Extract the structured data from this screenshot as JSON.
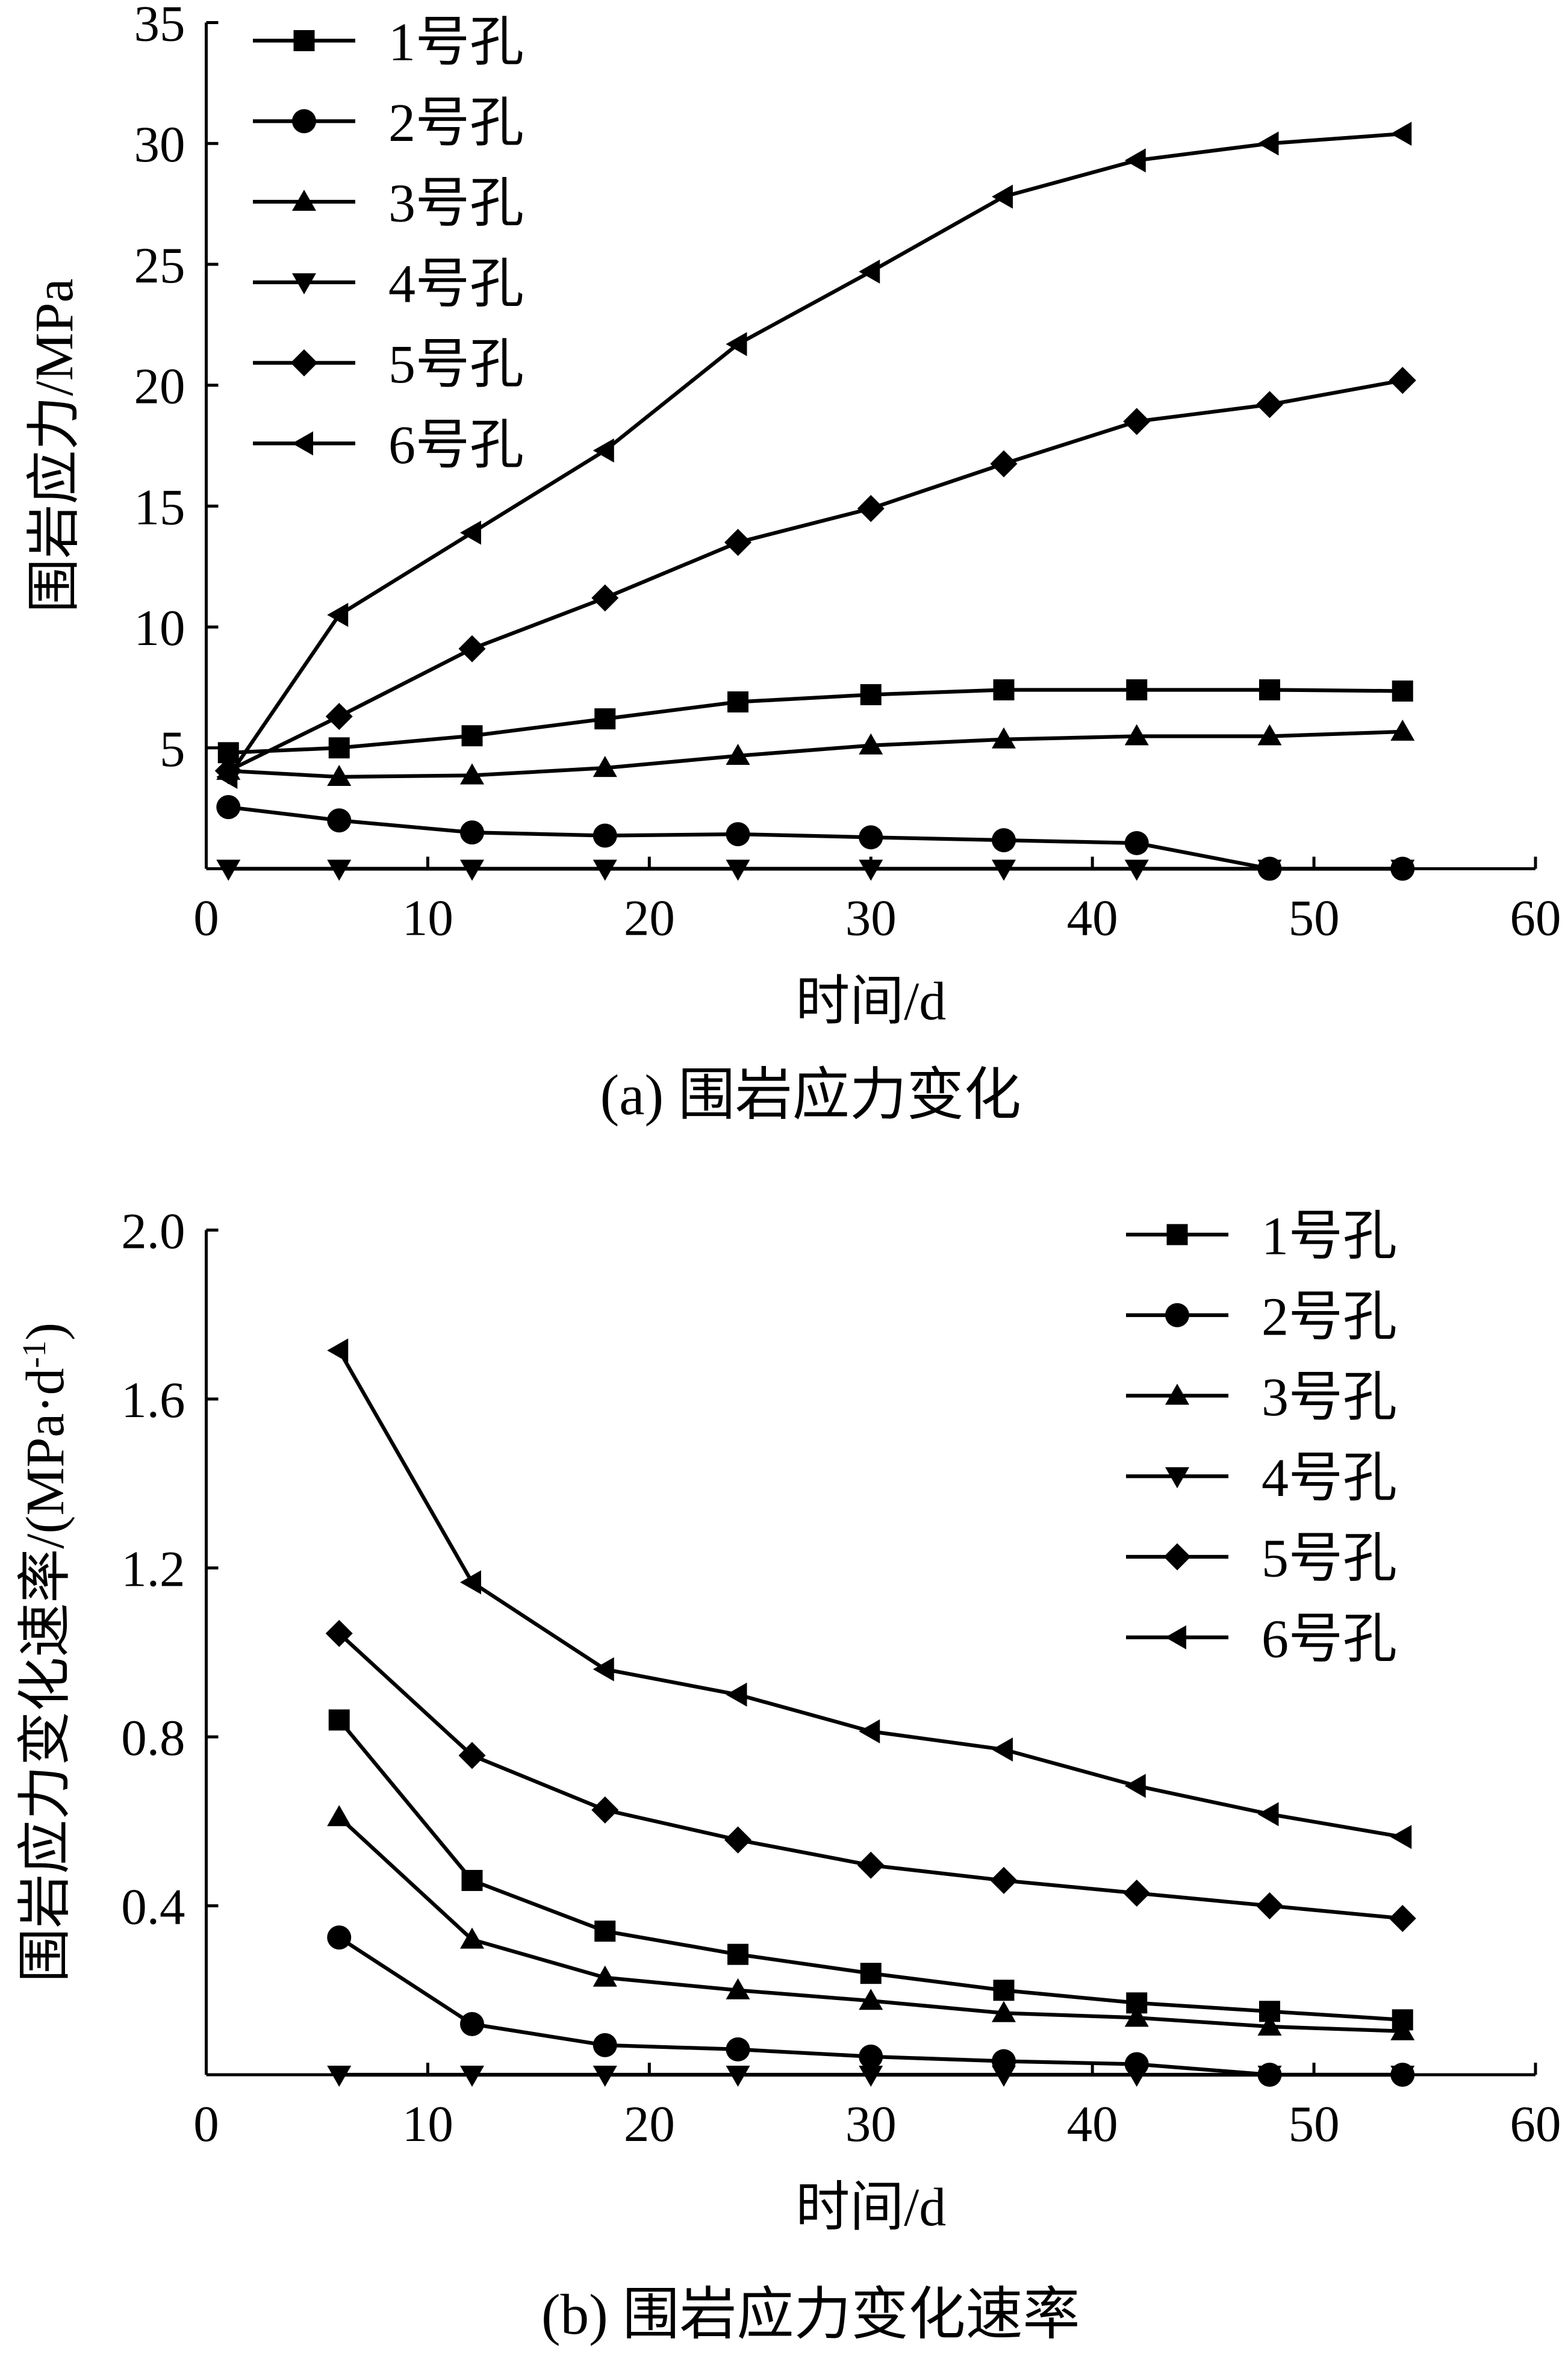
{
  "chart_data": [
    {
      "type": "line",
      "title": "",
      "caption": "(a)  围岩应力变化",
      "xlabel": "时间/d",
      "ylabel": "围岩应力/MPa",
      "xlim": [
        0,
        60
      ],
      "ylim": [
        0,
        35
      ],
      "xticks": [
        0,
        10,
        20,
        30,
        40,
        50,
        60
      ],
      "yticks": [
        5,
        10,
        15,
        20,
        25,
        30,
        35
      ],
      "grid": false,
      "legend_position": "top-left",
      "x": [
        1,
        6,
        12,
        18,
        24,
        30,
        36,
        42,
        48,
        54
      ],
      "series": [
        {
          "name": "1号孔",
          "marker": "square",
          "values": [
            4.8,
            5.0,
            5.5,
            6.2,
            6.9,
            7.2,
            7.4,
            7.4,
            7.4,
            7.35
          ]
        },
        {
          "name": "2号孔",
          "marker": "circle",
          "values": [
            2.55,
            2.0,
            1.5,
            1.37,
            1.43,
            1.3,
            1.18,
            1.06,
            0,
            0
          ]
        },
        {
          "name": "3号孔",
          "marker": "triangle-up",
          "values": [
            4.05,
            3.8,
            3.86,
            4.17,
            4.67,
            5.1,
            5.35,
            5.48,
            5.48,
            5.67
          ]
        },
        {
          "name": "4号孔",
          "marker": "triangle-down",
          "values": [
            0,
            0,
            0,
            0,
            0,
            0,
            0,
            0,
            0,
            0
          ]
        },
        {
          "name": "5号孔",
          "marker": "diamond",
          "values": [
            4.05,
            6.3,
            9.1,
            11.2,
            13.5,
            14.9,
            16.75,
            18.5,
            19.2,
            20.2
          ]
        },
        {
          "name": "6号孔",
          "marker": "triangle-left",
          "values": [
            3.8,
            10.5,
            13.9,
            17.3,
            21.7,
            24.7,
            27.8,
            29.3,
            30.0,
            30.4
          ]
        }
      ]
    },
    {
      "type": "line",
      "title": "",
      "caption": "(b)  围岩应力变化速率",
      "xlabel": "时间/d",
      "ylabel": "围岩应力变化速率/(MPa·d",
      "ylabel_sup": "-1",
      "ylabel_end": ")",
      "xlim": [
        0,
        60
      ],
      "ylim": [
        0,
        2.0
      ],
      "xticks": [
        0,
        10,
        20,
        30,
        40,
        50,
        60
      ],
      "yticks": [
        0.4,
        0.8,
        1.2,
        1.6,
        2.0
      ],
      "ytick_labels": [
        "0.4",
        "0.8",
        "1.2",
        "1.6",
        "2.0"
      ],
      "grid": false,
      "legend_position": "top-right",
      "x": [
        6,
        12,
        18,
        24,
        30,
        36,
        42,
        48,
        54
      ],
      "series": [
        {
          "name": "1号孔",
          "marker": "square",
          "values": [
            0.84,
            0.46,
            0.34,
            0.285,
            0.24,
            0.2,
            0.17,
            0.15,
            0.13
          ]
        },
        {
          "name": "2号孔",
          "marker": "circle",
          "values": [
            0.325,
            0.12,
            0.07,
            0.06,
            0.043,
            0.032,
            0.025,
            0,
            0
          ]
        },
        {
          "name": "3号孔",
          "marker": "triangle-up",
          "values": [
            0.61,
            0.32,
            0.23,
            0.2,
            0.175,
            0.146,
            0.135,
            0.114,
            0.103
          ]
        },
        {
          "name": "4号孔",
          "marker": "triangle-down",
          "values": [
            0,
            0,
            0,
            0,
            0,
            0,
            0,
            0,
            0
          ]
        },
        {
          "name": "5号孔",
          "marker": "diamond",
          "values": [
            1.045,
            0.756,
            0.627,
            0.556,
            0.496,
            0.46,
            0.43,
            0.4,
            0.37
          ]
        },
        {
          "name": "6号孔",
          "marker": "triangle-left",
          "values": [
            1.715,
            1.166,
            0.96,
            0.9,
            0.813,
            0.77,
            0.684,
            0.617,
            0.563
          ]
        }
      ]
    }
  ]
}
